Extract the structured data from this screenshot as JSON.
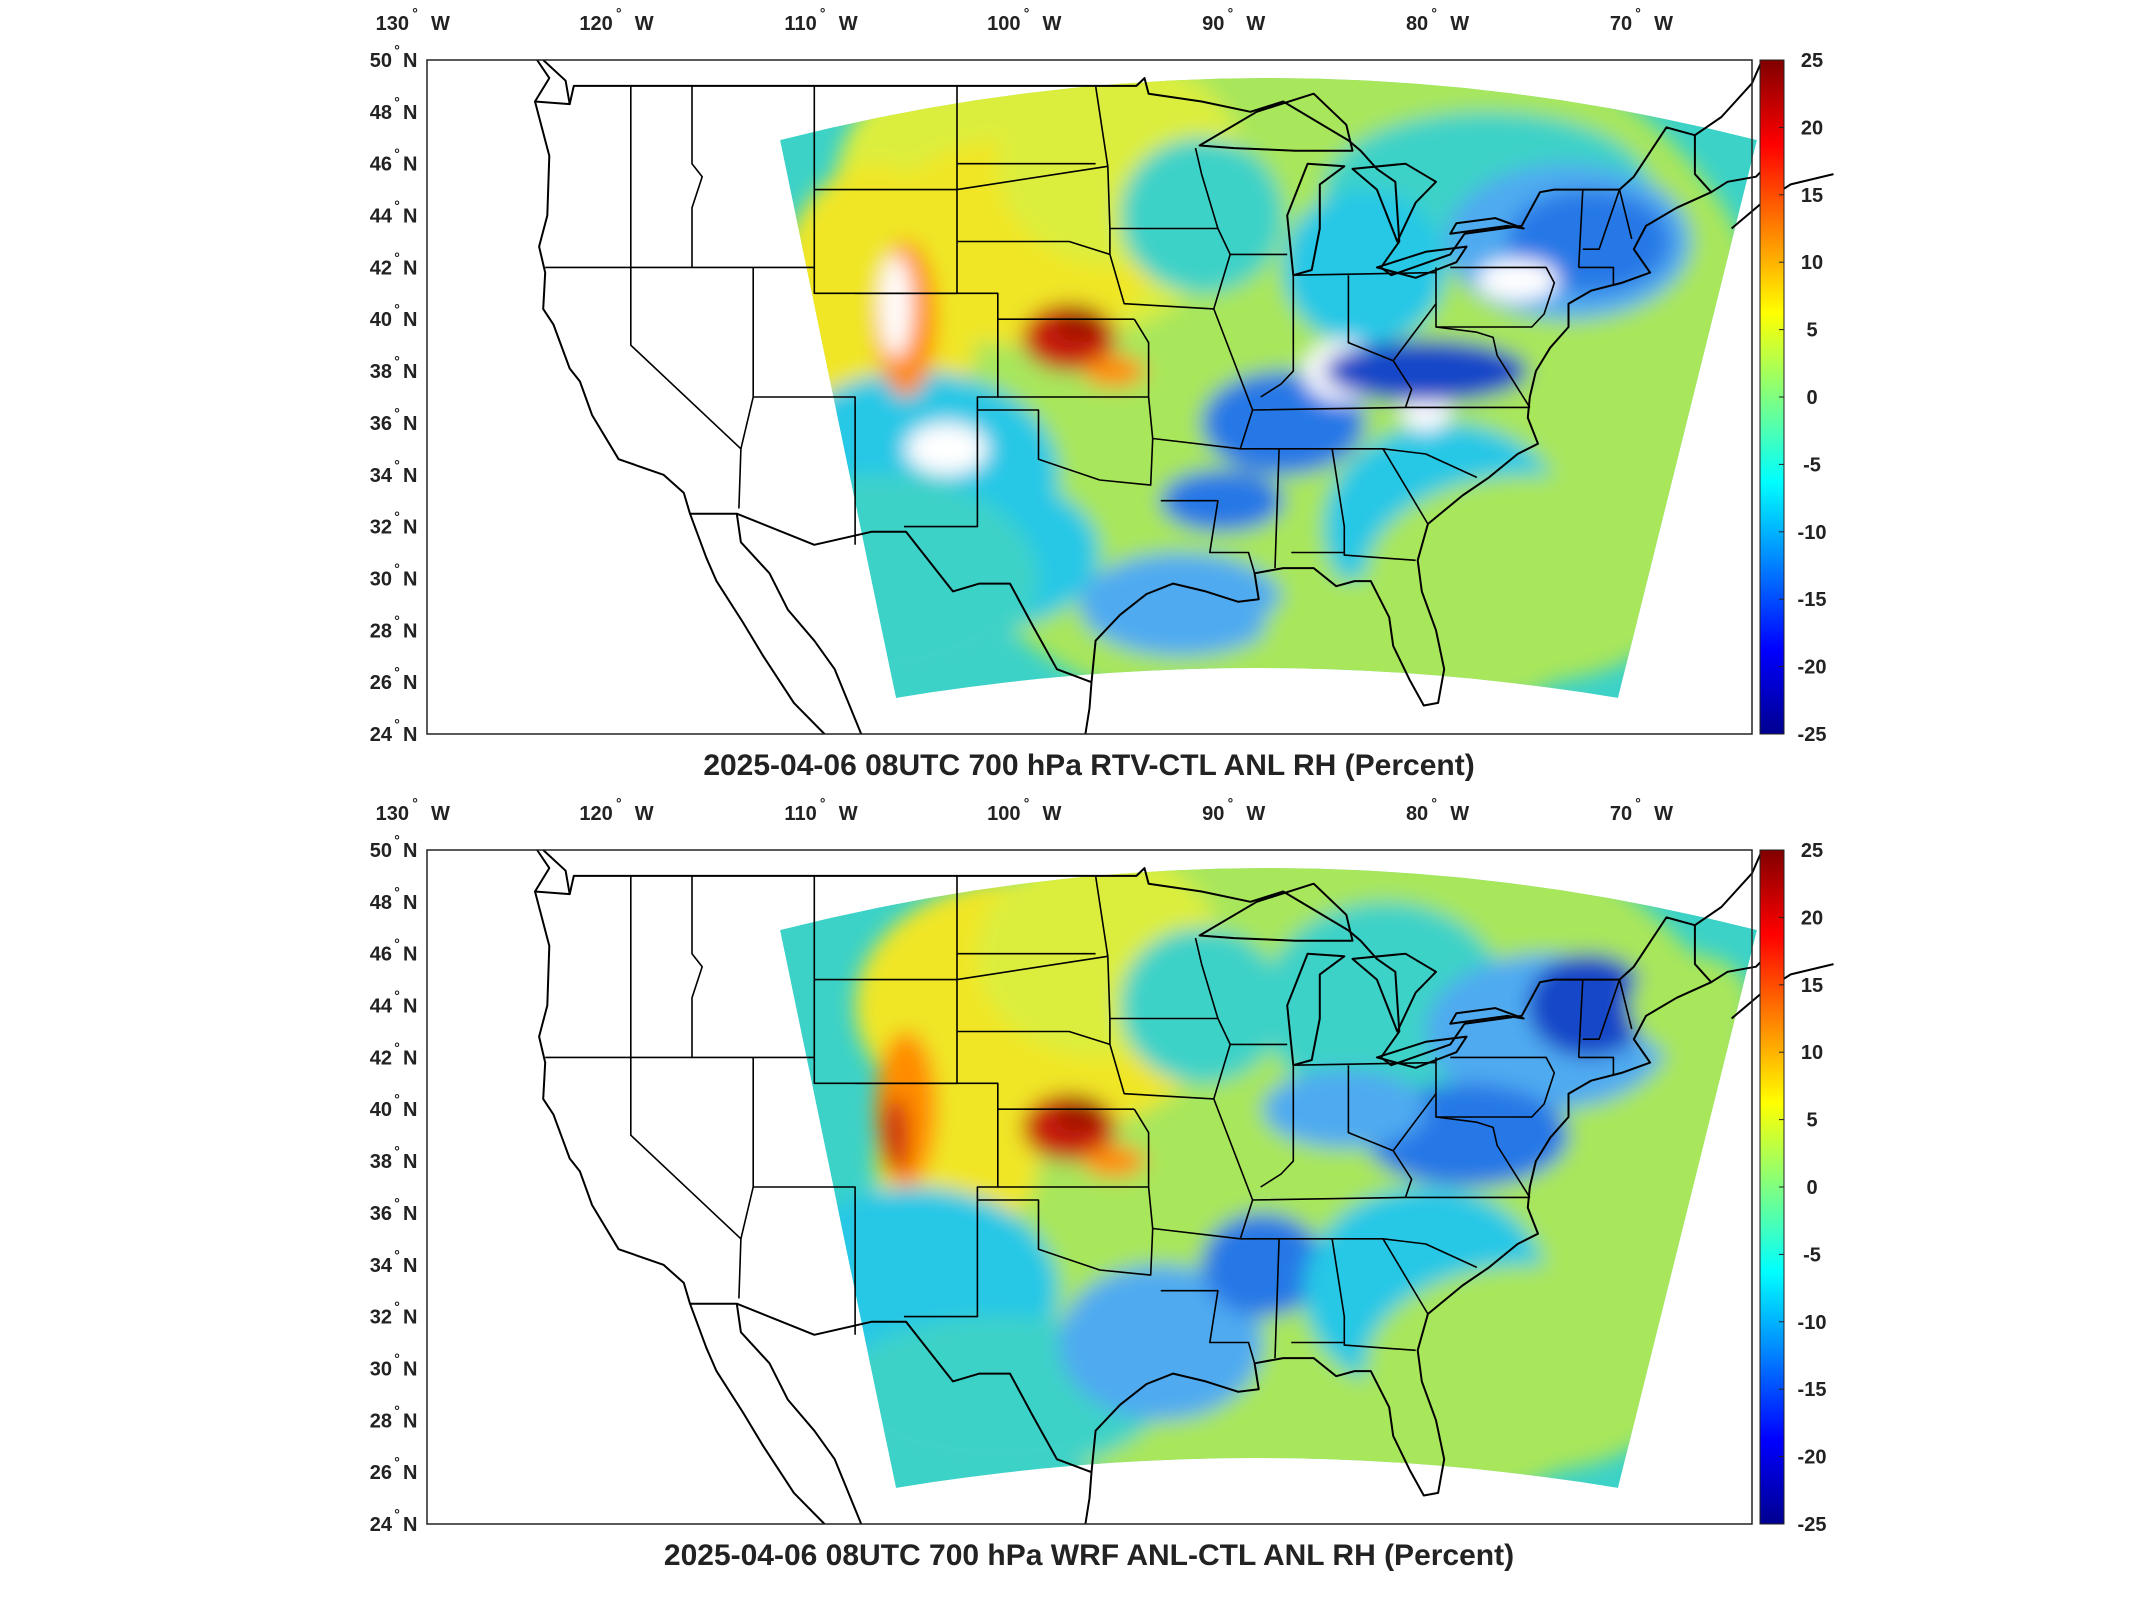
{
  "panels": [
    {
      "id": "top",
      "title": "2025-04-06 08UTC 700 hPa RTV-CTL ANL RH (Percent)",
      "dataset": "RTV-CTL"
    },
    {
      "id": "bottom",
      "title": "2025-04-06 08UTC 700 hPa WRF ANL-CTL ANL RH (Percent)",
      "dataset": "WRF ANL-CTL"
    }
  ],
  "axes": {
    "longitude_ticks": [
      {
        "value": -130,
        "num": "130",
        "hemi": "W"
      },
      {
        "value": -120,
        "num": "120",
        "hemi": "W"
      },
      {
        "value": -110,
        "num": "110",
        "hemi": "W"
      },
      {
        "value": -100,
        "num": "100",
        "hemi": "W"
      },
      {
        "value": -90,
        "num": "90",
        "hemi": "W"
      },
      {
        "value": -80,
        "num": "80",
        "hemi": "W"
      },
      {
        "value": -70,
        "num": "70",
        "hemi": "W"
      }
    ],
    "latitude_ticks": [
      {
        "value": 50,
        "num": "50",
        "hemi": "N"
      },
      {
        "value": 48,
        "num": "48",
        "hemi": "N"
      },
      {
        "value": 46,
        "num": "46",
        "hemi": "N"
      },
      {
        "value": 44,
        "num": "44",
        "hemi": "N"
      },
      {
        "value": 42,
        "num": "42",
        "hemi": "N"
      },
      {
        "value": 40,
        "num": "40",
        "hemi": "N"
      },
      {
        "value": 38,
        "num": "38",
        "hemi": "N"
      },
      {
        "value": 36,
        "num": "36",
        "hemi": "N"
      },
      {
        "value": 34,
        "num": "34",
        "hemi": "N"
      },
      {
        "value": 32,
        "num": "32",
        "hemi": "N"
      },
      {
        "value": 30,
        "num": "30",
        "hemi": "N"
      },
      {
        "value": 28,
        "num": "28",
        "hemi": "N"
      },
      {
        "value": 26,
        "num": "26",
        "hemi": "N"
      },
      {
        "value": 24,
        "num": "24",
        "hemi": "N"
      }
    ],
    "degree_symbol": "°",
    "lon_range": [
      -130,
      -65
    ],
    "lat_range": [
      24,
      50
    ]
  },
  "colorbar": {
    "ticks": [
      "25",
      "20",
      "15",
      "10",
      "5",
      "0",
      "-5",
      "-10",
      "-15",
      "-20",
      "-25"
    ],
    "range": [
      -25,
      25
    ],
    "colors": [
      "#00008f",
      "#0000ff",
      "#0080ff",
      "#00ffff",
      "#80ff80",
      "#ffff00",
      "#ff8000",
      "#ff0000",
      "#800000"
    ]
  },
  "field_colors": {
    "red": "#c81e0a",
    "dark_red": "#a01406",
    "orange": "#ff8c00",
    "yellow": "#f0e628",
    "light_yellow": "#dcee3c",
    "green": "#a8e65c",
    "aqua": "#3cd2c8",
    "cyan": "#28c8e6",
    "light_blue": "#50aaf0",
    "blue": "#2878e6",
    "dark_blue": "#1446c8",
    "missing": "#ffffff"
  }
}
